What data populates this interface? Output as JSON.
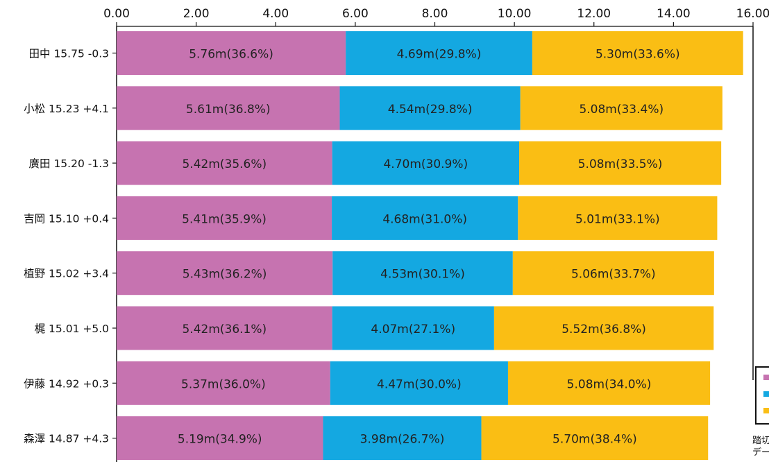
{
  "chart_data": {
    "type": "bar",
    "orientation": "horizontal",
    "stacked": true,
    "title": "",
    "xlabel": "",
    "ylabel": "",
    "xlim": [
      0,
      16
    ],
    "x_ticks": [
      "0.00",
      "2.00",
      "4.00",
      "6.00",
      "8.00",
      "10.00",
      "12.00",
      "14.00",
      "16.00"
    ],
    "grid": false,
    "legend_placement": "right, partially cropped",
    "categories": [
      "田中 15.75 -0.3",
      "小松 15.23 +4.1",
      "廣田 15.20 -1.3",
      "吉岡 15.10 +0.4",
      "植野 15.02 +3.4",
      "梶 15.01 +5.0",
      "伊藤 14.92 +0.3",
      "森澤 14.87 +4.3"
    ],
    "series": [
      {
        "color": "#c673b0",
        "values": [
          5.76,
          5.61,
          5.42,
          5.41,
          5.43,
          5.42,
          5.37,
          5.19
        ],
        "labels": [
          "5.76m(36.6%)",
          "5.61m(36.8%)",
          "5.42m(35.6%)",
          "5.41m(35.9%)",
          "5.43m(36.2%)",
          "5.42m(36.1%)",
          "5.37m(36.0%)",
          "5.19m(34.9%)"
        ]
      },
      {
        "color": "#14a8e1",
        "values": [
          4.69,
          4.54,
          4.7,
          4.68,
          4.53,
          4.07,
          4.47,
          3.98
        ],
        "labels": [
          "4.69m(29.8%)",
          "4.54m(29.8%)",
          "4.70m(30.9%)",
          "4.68m(31.0%)",
          "4.53m(30.1%)",
          "4.07m(27.1%)",
          "4.47m(30.0%)",
          "3.98m(26.7%)"
        ]
      },
      {
        "color": "#fabe14",
        "values": [
          5.3,
          5.08,
          5.08,
          5.01,
          5.06,
          5.52,
          5.08,
          5.7
        ],
        "labels": [
          "5.30m(33.6%)",
          "5.08m(33.4%)",
          "5.08m(33.5%)",
          "5.01m(33.1%)",
          "5.06m(33.7%)",
          "5.52m(36.8%)",
          "5.08m(34.0%)",
          "5.70m(38.4%)"
        ]
      }
    ],
    "notes": [
      "踏切",
      "デー"
    ]
  }
}
